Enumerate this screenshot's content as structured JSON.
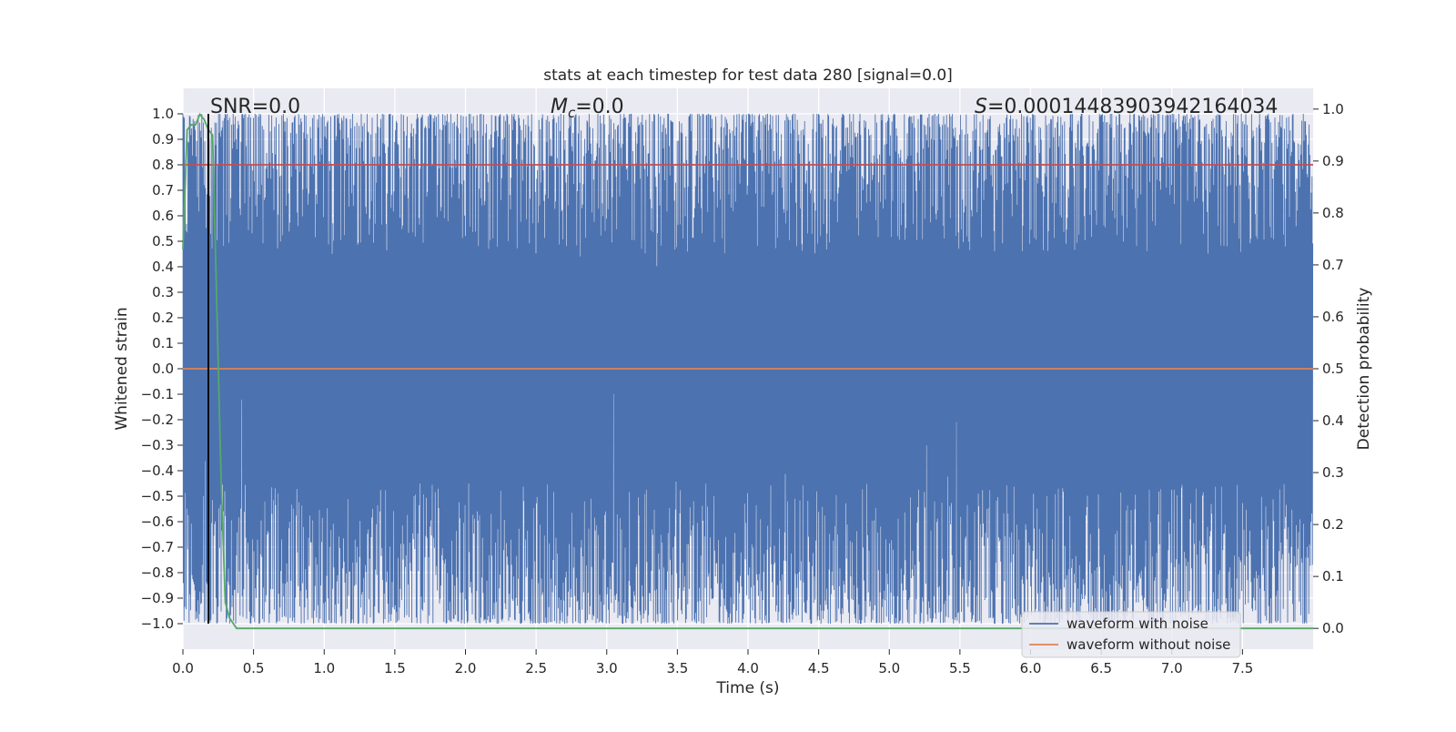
{
  "chart_data": {
    "type": "line",
    "title": "stats at each timestep for test data 280 [signal=0.0]",
    "xlabel": "Time (s)",
    "ylabel": "Whitened strain",
    "y2label": "Detection probability",
    "xlim": [
      0.0,
      8.0
    ],
    "ylim": [
      -1.1,
      1.1
    ],
    "y2lim": [
      -0.04,
      1.04
    ],
    "x_ticks": [
      "0.0",
      "0.5",
      "1.0",
      "1.5",
      "2.0",
      "2.5",
      "3.0",
      "3.5",
      "4.0",
      "4.5",
      "5.0",
      "5.5",
      "6.0",
      "6.5",
      "7.0",
      "7.5"
    ],
    "y_ticks": [
      "1.0",
      "0.9",
      "0.8",
      "0.7",
      "0.6",
      "0.5",
      "0.4",
      "0.3",
      "0.2",
      "0.1",
      "0.0",
      "−0.1",
      "−0.2",
      "−0.3",
      "−0.4",
      "−0.5",
      "−0.6",
      "−0.7",
      "−0.8",
      "−0.9",
      "−1.0"
    ],
    "y2_ticks": [
      "1.0",
      "0.9",
      "0.8",
      "0.7",
      "0.6",
      "0.5",
      "0.4",
      "0.3",
      "0.2",
      "0.1",
      "0.0"
    ],
    "grid": true,
    "legend": {
      "placement": "lower-right",
      "entries": [
        {
          "label": "waveform with noise",
          "color": "#4c72b0"
        },
        {
          "label": "waveform without noise",
          "color": "#dd8452"
        }
      ]
    },
    "annotations": [
      {
        "label": "SNR",
        "value": "=0.0"
      },
      {
        "label": "M",
        "subscript": "c",
        "value": "=0.0"
      },
      {
        "label": "S",
        "value": "=0.00014483903942164034"
      }
    ],
    "series": [
      {
        "name": "waveform with noise",
        "axis": "left",
        "color": "#4c72b0",
        "render": "dense noise filling approximately [-1, 1]",
        "x_range": [
          0.0,
          8.0
        ],
        "y_range": [
          -1.0,
          1.0
        ]
      },
      {
        "name": "waveform without noise",
        "axis": "left",
        "color": "#dd8452",
        "x": [
          0.0,
          8.0
        ],
        "y": [
          0.0,
          0.0
        ]
      },
      {
        "axis": "left",
        "color": "#c44e52",
        "x": [
          0.0,
          8.0
        ],
        "y": [
          0.8,
          0.8
        ]
      },
      {
        "axis": "right",
        "color": "#55a868",
        "x": [
          0.0,
          0.03,
          0.06,
          0.09,
          0.12,
          0.15,
          0.18,
          0.21,
          0.24,
          0.27,
          0.3,
          0.33,
          0.38,
          8.0
        ],
        "y": [
          0.73,
          0.96,
          0.97,
          0.97,
          0.99,
          0.98,
          0.96,
          0.95,
          0.62,
          0.29,
          0.05,
          0.02,
          0.0,
          0.0
        ]
      },
      {
        "axis": "left",
        "color": "#000000",
        "type": "vline",
        "x": 0.18,
        "y": [
          -1.0,
          1.0
        ]
      }
    ]
  }
}
